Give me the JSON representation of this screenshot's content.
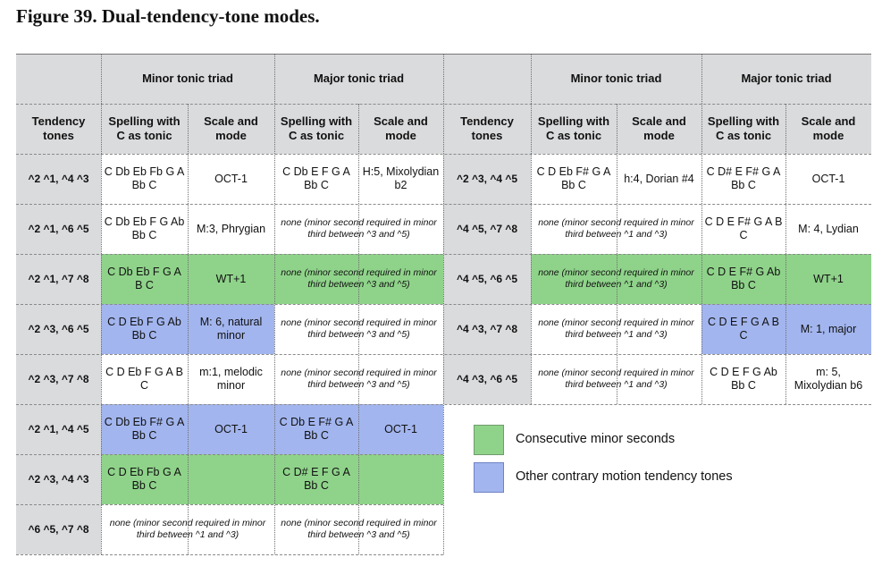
{
  "figure_title": "Figure 39. Dual-tendency-tone modes.",
  "header": {
    "minor_tonic_triad": "Minor tonic triad",
    "major_tonic_triad": "Major tonic triad",
    "tendency_tones": "Tendency tones",
    "spelling": "Spelling with C as tonic",
    "scale_mode": "Scale and mode"
  },
  "left_rows": [
    {
      "tones": "^2 ^1, ^4 ^3",
      "minor_spelling": "C Db Eb Fb G A Bb C",
      "minor_mode": "OCT-1",
      "major_spelling": "C Db E F G A Bb C",
      "major_mode": "H:5, Mixolydian b2",
      "minor_color": "white",
      "major_color": "white"
    },
    {
      "tones": "^2 ^1, ^6 ^5",
      "minor_spelling": "C Db Eb F G Ab Bb C",
      "minor_mode": "M:3, Phrygian",
      "major_note": "none (minor second required in minor third between ^3 and ^5)",
      "minor_color": "white",
      "major_color": "white"
    },
    {
      "tones": "^2 ^1, ^7 ^8",
      "minor_spelling": "C Db Eb F G A B C",
      "minor_mode": "WT+1",
      "major_note": "none (minor second required in minor third between ^3 and ^5)",
      "minor_color": "green",
      "major_color": "green"
    },
    {
      "tones": "^2 ^3, ^6 ^5",
      "minor_spelling": "C D Eb F G Ab Bb C",
      "minor_mode": "M: 6, natural minor",
      "major_note": "none (minor second required in minor third between ^3 and ^5)",
      "minor_color": "blue",
      "major_color": "white"
    },
    {
      "tones": "^2 ^3, ^7 ^8",
      "minor_spelling": "C D Eb F G A B C",
      "minor_mode": "m:1, melodic minor",
      "major_note": "none (minor second required in minor third between ^3 and ^5)",
      "minor_color": "white",
      "major_color": "white"
    },
    {
      "tones": "^2 ^1, ^4 ^5",
      "minor_spelling": "C Db Eb F# G A Bb C",
      "minor_mode": "OCT-1",
      "major_spelling": "C Db E F# G A Bb C",
      "major_mode": "OCT-1",
      "minor_color": "blue",
      "major_color": "blue"
    },
    {
      "tones": "^2 ^3, ^4 ^3",
      "minor_spelling": "C D Eb Fb G A Bb C",
      "minor_mode": "",
      "major_spelling": "C D# E F G A Bb C",
      "major_mode": "",
      "minor_color": "green",
      "major_color": "green"
    },
    {
      "tones": "^6 ^5, ^7 ^8",
      "minor_note": "none (minor second required in minor third between ^1 and ^3)",
      "major_note": "none (minor second required in minor third between ^3 and ^5)",
      "minor_color": "white",
      "major_color": "white"
    }
  ],
  "right_rows": [
    {
      "tones": "^2 ^3, ^4 ^5",
      "minor_spelling": "C D Eb F# G A Bb C",
      "minor_mode": "h:4, Dorian #4",
      "major_spelling": "C D# E F# G A Bb C",
      "major_mode": "OCT-1",
      "minor_color": "white",
      "major_color": "white"
    },
    {
      "tones": "^4 ^5, ^7 ^8",
      "minor_note": "none (minor second required in minor third between ^1 and ^3)",
      "major_spelling": "C D E F# G A B C",
      "major_mode": "M: 4, Lydian",
      "minor_color": "white",
      "major_color": "white"
    },
    {
      "tones": "^4 ^5, ^6 ^5",
      "minor_note": "none (minor second required in minor third between ^1 and ^3)",
      "major_spelling": "C D E F# G Ab Bb C",
      "major_mode": "WT+1",
      "minor_color": "green",
      "major_color": "green"
    },
    {
      "tones": "^4 ^3, ^7 ^8",
      "minor_note": "none (minor second required in minor third between ^1 and ^3)",
      "major_spelling": "C D E F G A B C",
      "major_mode": "M: 1, major",
      "minor_color": "white",
      "major_color": "blue"
    },
    {
      "tones": "^4 ^3, ^6 ^5",
      "minor_note": "none (minor second required in minor third between ^1 and ^3)",
      "major_spelling": "C D E F G Ab Bb C",
      "major_mode": "m: 5, Mixolydian b6",
      "minor_color": "white",
      "major_color": "white"
    }
  ],
  "legend": [
    {
      "label": "Consecutive minor seconds",
      "color": "#8fd38a"
    },
    {
      "label": "Other contrary motion tendency tones",
      "color": "#a2b5ee"
    }
  ]
}
